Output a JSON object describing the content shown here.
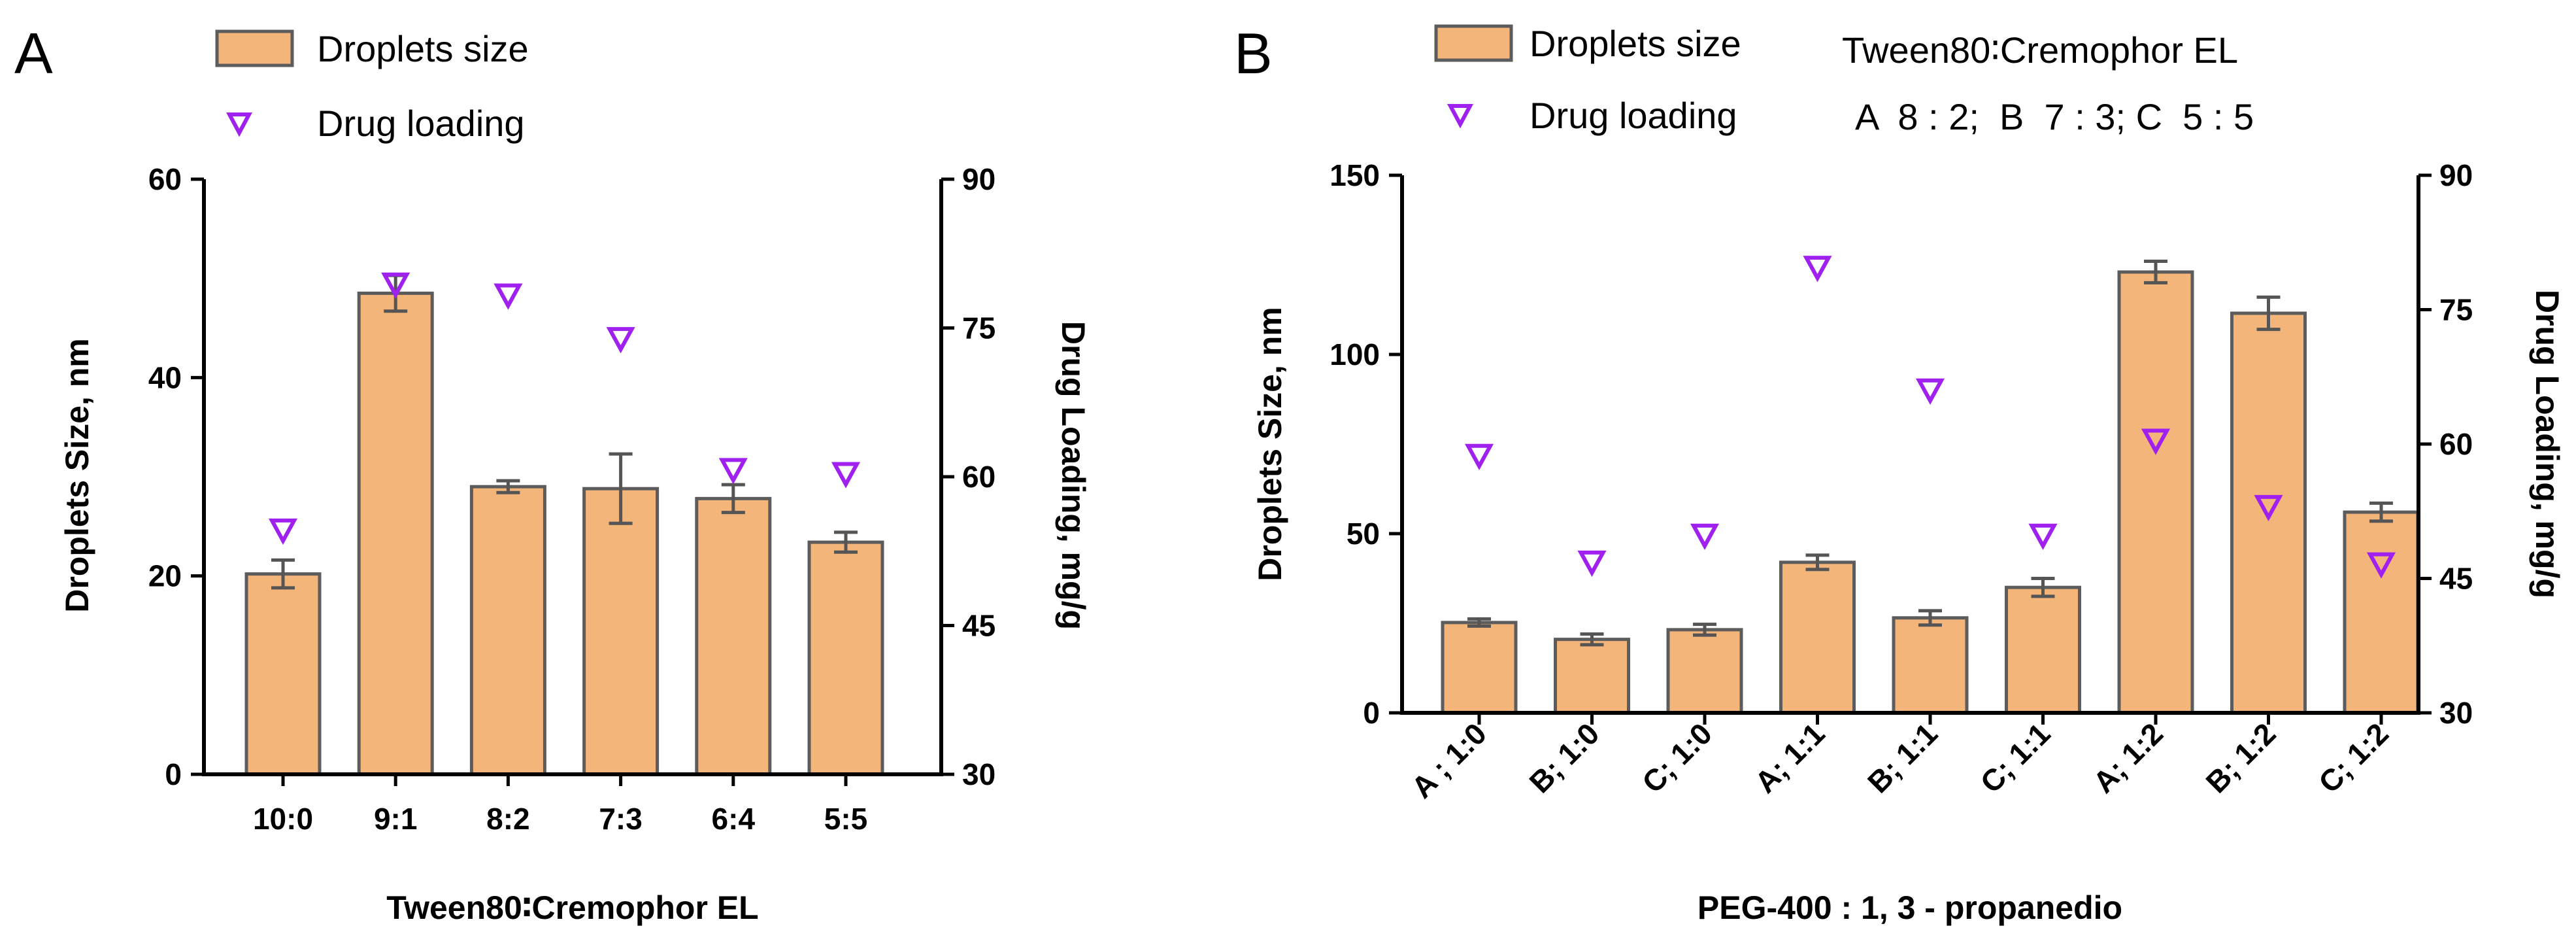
{
  "chart_data": [
    {
      "panel": "A",
      "type": "bar",
      "legend": {
        "bar_label": "Droplets size",
        "marker_label": "Drug loading",
        "placement": "top-left"
      },
      "categories": [
        "10:0",
        "9:1",
        "8:2",
        "7:3",
        "6:4",
        "5:5"
      ],
      "xlabel": "Tween80∶Cremophor EL",
      "ylabel": "Droplets Size, nm",
      "y2label": "Drug Loading, mg/g",
      "ylim": [
        0,
        60
      ],
      "yticks": [
        0,
        20,
        40,
        60
      ],
      "y2lim": [
        30,
        90
      ],
      "y2ticks": [
        30,
        45,
        60,
        75,
        90
      ],
      "series": [
        {
          "name": "Droplets size",
          "axis": "left",
          "kind": "bar",
          "values": [
            20.2,
            48.5,
            29.0,
            28.8,
            27.8,
            23.4
          ],
          "errors": [
            1.4,
            1.8,
            0.6,
            3.5,
            1.4,
            1.0
          ]
        },
        {
          "name": "Drug loading",
          "axis": "right",
          "kind": "marker",
          "values": [
            54.6,
            79.4,
            78.3,
            73.9,
            60.7,
            60.3
          ]
        }
      ],
      "colors": {
        "bar": "#f4b57b",
        "bar_edge": "#5c5c5c",
        "marker": "#a020f0"
      }
    },
    {
      "panel": "B",
      "type": "bar",
      "legend": {
        "bar_label": "Droplets size",
        "marker_label": "Drug loading",
        "placement": "top-left"
      },
      "annotation": {
        "title": "Tween80∶Cremophor EL",
        "line": "A  8 : 2;  B  7 : 3; C  5 : 5"
      },
      "categories": [
        "A ; 1:0",
        "B; 1:0",
        "C; 1:0",
        "A; 1:1",
        "B; 1:1",
        "C; 1:1",
        "A; 1:2",
        "B; 1:2",
        "C; 1:2"
      ],
      "xlabel": "PEG-400 : 1, 3 - propanedio",
      "ylabel": "Droplets Size,  nm",
      "y2label": "Drug Loading, mg/g",
      "ylim": [
        0,
        150
      ],
      "yticks": [
        0,
        50,
        100,
        150
      ],
      "y2lim": [
        30,
        90
      ],
      "y2ticks": [
        30,
        45,
        60,
        75,
        90
      ],
      "series": [
        {
          "name": "Droplets size",
          "axis": "left",
          "kind": "bar",
          "values": [
            25.2,
            20.5,
            23.2,
            42.0,
            26.5,
            35.0,
            123.0,
            111.5,
            56.0
          ],
          "errors": [
            1.0,
            1.5,
            1.5,
            2.0,
            2.0,
            2.5,
            3.0,
            4.5,
            2.5
          ]
        },
        {
          "name": "Drug loading",
          "axis": "right",
          "kind": "marker",
          "values": [
            58.7,
            46.8,
            49.8,
            79.7,
            66.0,
            49.8,
            60.4,
            53.0,
            46.6
          ]
        }
      ],
      "colors": {
        "bar": "#f4b57b",
        "bar_edge": "#5c5c5c",
        "marker": "#a020f0"
      }
    }
  ]
}
